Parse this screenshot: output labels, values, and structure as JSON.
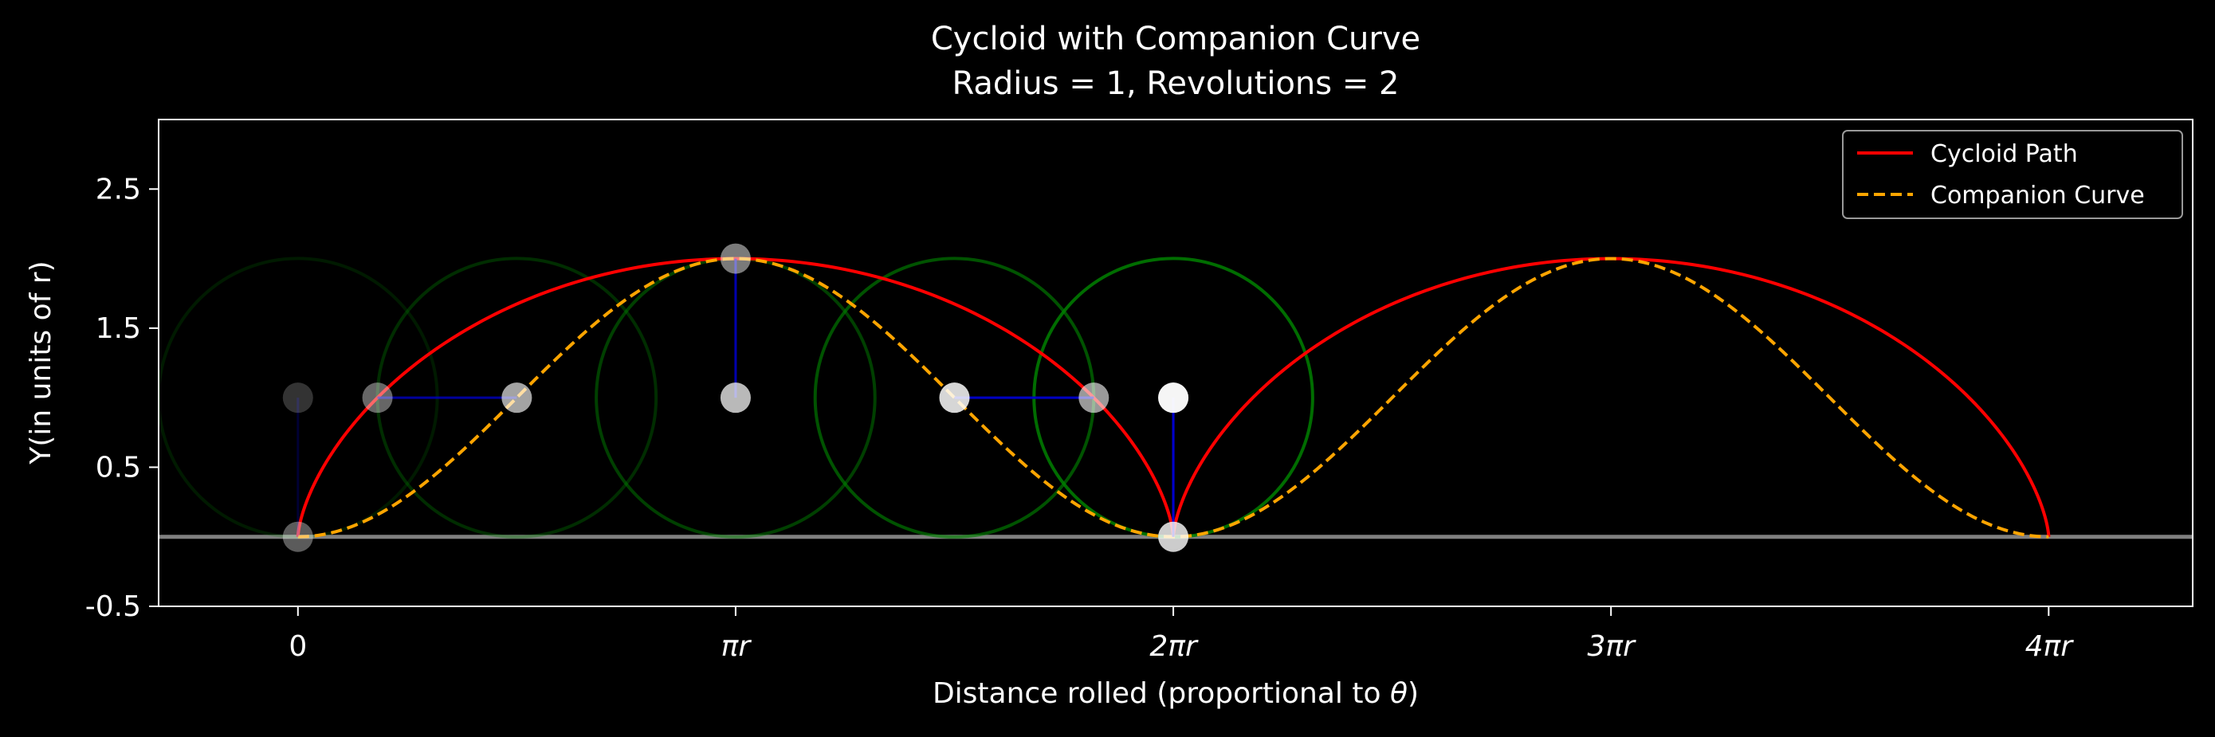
{
  "chart_data": {
    "type": "line",
    "title": "Cycloid with Companion Curve",
    "subtitle": "Radius = 1, Revolutions = 2",
    "xlabel_prefix": "Distance rolled (proportional to ",
    "xlabel_symbol": "θ",
    "xlabel_suffix": ")",
    "ylabel": "Y(in units of r)",
    "radius": 1,
    "revolutions": 2,
    "xlim": [
      -1.0,
      13.6
    ],
    "ylim": [
      -0.5,
      3.0
    ],
    "x_ticks": [
      {
        "value": 0,
        "label": "0"
      },
      {
        "value": 3.14159,
        "label": "πr"
      },
      {
        "value": 6.28319,
        "label": "2πr"
      },
      {
        "value": 9.42478,
        "label": "3πr"
      },
      {
        "value": 12.56637,
        "label": "4πr"
      }
    ],
    "y_ticks": [
      {
        "value": -0.5,
        "label": "-0.5"
      },
      {
        "value": 0.5,
        "label": "0.5"
      },
      {
        "value": 1.5,
        "label": "1.5"
      },
      {
        "value": 2.5,
        "label": "2.5"
      }
    ],
    "series": [
      {
        "name": "Cycloid Path",
        "color": "#ff0000",
        "style": "solid",
        "function": "cycloid"
      },
      {
        "name": "Companion Curve",
        "color": "#ffa500",
        "style": "dashed",
        "function": "companion"
      }
    ],
    "ground_line": {
      "y": 0,
      "color": "#808080"
    },
    "rolling_circles": [
      {
        "center_x": 0.0,
        "opacity": 0.2,
        "point": {
          "x": 0.0,
          "y": 0.0
        },
        "companion": {
          "x": 0.0,
          "y": 0.0
        },
        "point_opacity": 0.25
      },
      {
        "center_x": 1.5708,
        "opacity": 0.35,
        "point": {
          "x": 0.5708,
          "y": 1.0
        },
        "companion": {
          "x": 1.5708,
          "y": 1.0
        },
        "point_opacity": 0.5
      },
      {
        "center_x": 3.14159,
        "opacity": 0.5,
        "point": {
          "x": 3.14159,
          "y": 2.0
        },
        "companion": {
          "x": 3.14159,
          "y": 1.0
        },
        "point_opacity": 0.6
      },
      {
        "center_x": 4.71239,
        "opacity": 0.65,
        "point": {
          "x": 5.71239,
          "y": 1.0
        },
        "companion": {
          "x": 4.71239,
          "y": 1.0
        },
        "point_opacity": 0.75
      },
      {
        "center_x": 6.28319,
        "opacity": 0.85,
        "point": {
          "x": 6.28319,
          "y": 0.0
        },
        "companion": {
          "x": 6.28319,
          "y": 1.0
        },
        "point_opacity": 1.0
      }
    ],
    "colors": {
      "background": "#000000",
      "circle": "#008000",
      "connector": "#0000cd",
      "marker": "#ffffff",
      "axes": "#ffffff",
      "legend_border": "#999999"
    },
    "legend": {
      "position": "top-right"
    },
    "grid": false
  }
}
